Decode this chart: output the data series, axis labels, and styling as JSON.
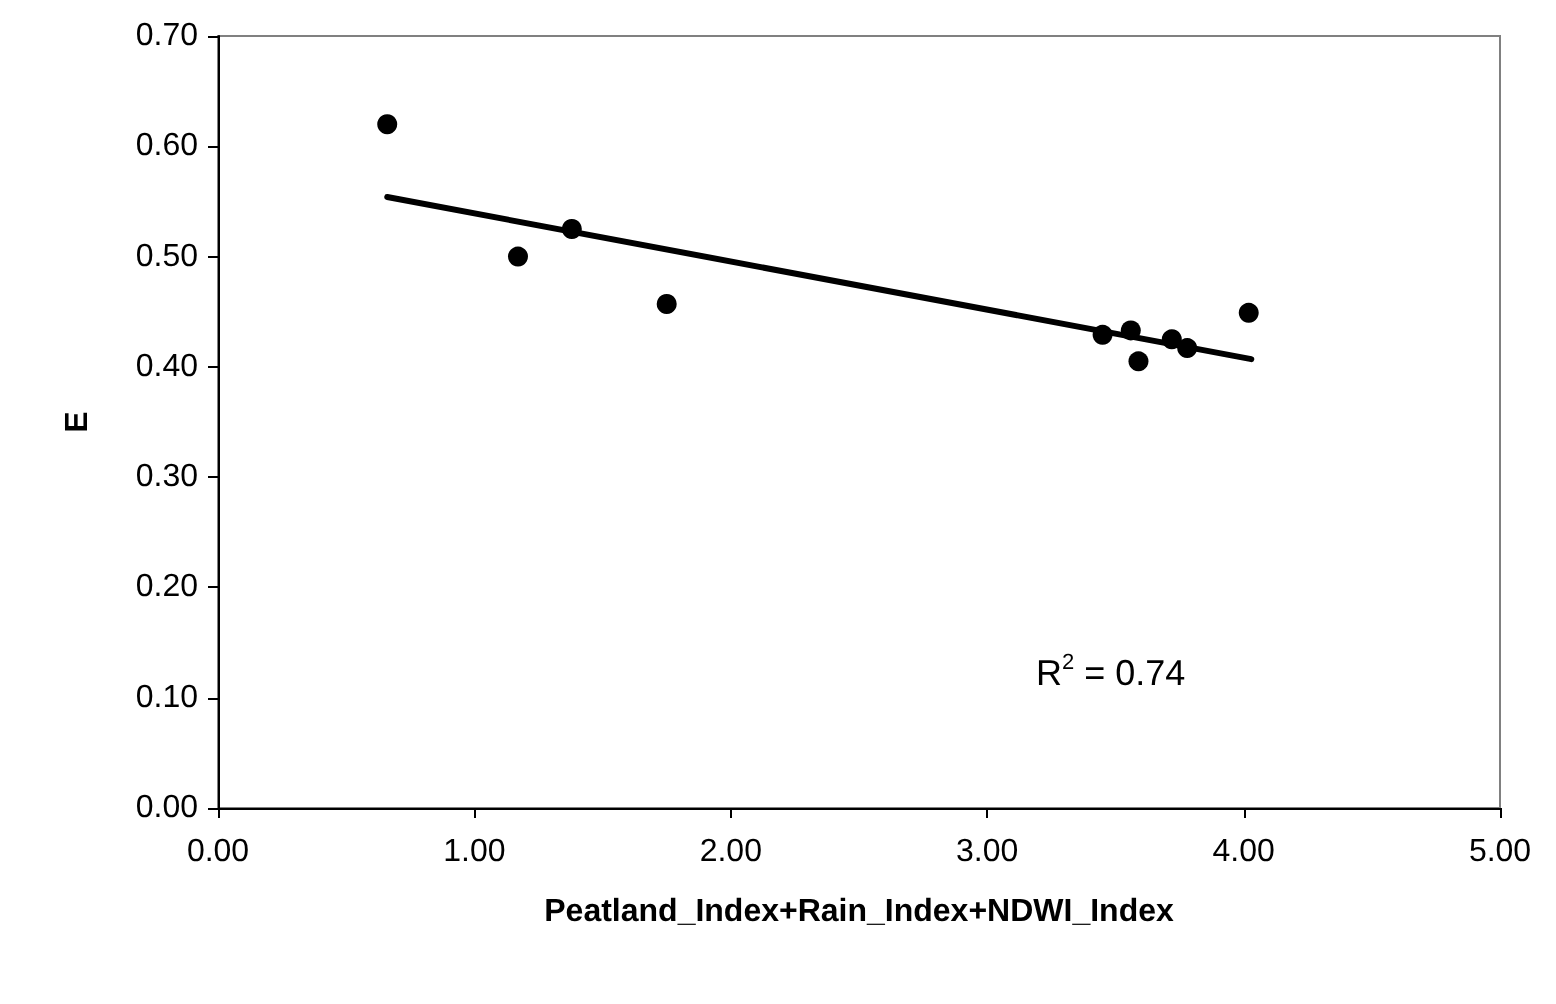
{
  "chart_data": {
    "type": "scatter",
    "xlabel": "Peatland_Index+Rain_Index+NDWI_Index",
    "ylabel": "E",
    "xlim": [
      0,
      5
    ],
    "xticks": [
      {
        "value": 0,
        "label": "0.00"
      },
      {
        "value": 1,
        "label": "1.00"
      },
      {
        "value": 2,
        "label": "2.00"
      },
      {
        "value": 3,
        "label": "3.00"
      },
      {
        "value": 4,
        "label": "4.00"
      },
      {
        "value": 5,
        "label": "5.00"
      }
    ],
    "ylim": [
      0,
      0.7
    ],
    "yticks": [
      {
        "value": 0,
        "label": "0.00"
      },
      {
        "value": 0.1,
        "label": "0.10"
      },
      {
        "value": 0.2,
        "label": "0.20"
      },
      {
        "value": 0.3,
        "label": "0.30"
      },
      {
        "value": 0.4,
        "label": "0.40"
      },
      {
        "value": 0.5,
        "label": "0.50"
      },
      {
        "value": 0.6,
        "label": "0.60"
      },
      {
        "value": 0.7,
        "label": "0.70"
      }
    ],
    "grid": false,
    "marker": "circle",
    "series": [
      {
        "color": "#000000",
        "x": [
          0.66,
          1.17,
          1.38,
          1.75,
          3.45,
          3.56,
          3.59,
          3.72,
          3.78,
          4.02
        ],
        "values": [
          0.62,
          0.5,
          0.525,
          0.457,
          0.429,
          0.433,
          0.405,
          0.425,
          0.417,
          0.449
        ]
      },
      {
        "type": "line",
        "color": "#000000",
        "marker": "none",
        "line_style": "solid",
        "x": [
          0.66,
          4.03
        ],
        "values": [
          0.554,
          0.407
        ]
      }
    ],
    "annotations": [
      "R$^{2}$ = 0.74"
    ]
  }
}
